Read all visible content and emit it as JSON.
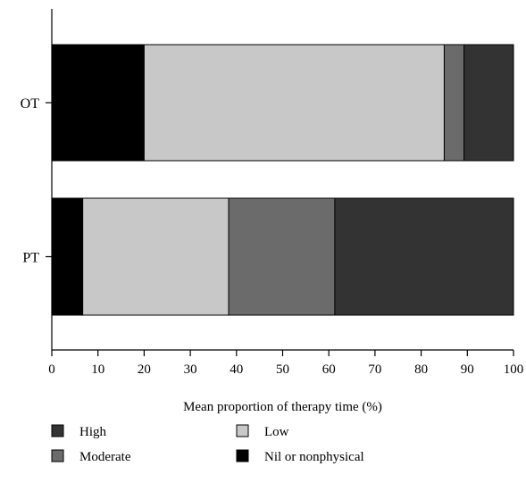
{
  "chart_data": {
    "type": "bar",
    "orientation": "horizontal",
    "stacked": true,
    "categories": [
      "OT",
      "PT"
    ],
    "series": [
      {
        "name": "Nil or nonphysical",
        "color": "#000000",
        "values": [
          20.0,
          6.7
        ]
      },
      {
        "name": "Low",
        "color": "#c8c8c8",
        "values": [
          65.0,
          31.6
        ]
      },
      {
        "name": "Moderate",
        "color": "#6b6b6b",
        "values": [
          4.3,
          23.0
        ]
      },
      {
        "name": "High",
        "color": "#333333",
        "values": [
          10.7,
          38.7
        ]
      }
    ],
    "xlabel": "Mean proportion of therapy time (%)",
    "ylabel": "",
    "xlim": [
      0,
      100
    ],
    "xticks": [
      "0",
      "10",
      "20",
      "30",
      "40",
      "50",
      "60",
      "70",
      "80",
      "90",
      "100"
    ],
    "legend_order": [
      "High",
      "Low",
      "Moderate",
      "Nil or nonphysical"
    ],
    "legend_placement": "bottom",
    "grid": false
  }
}
